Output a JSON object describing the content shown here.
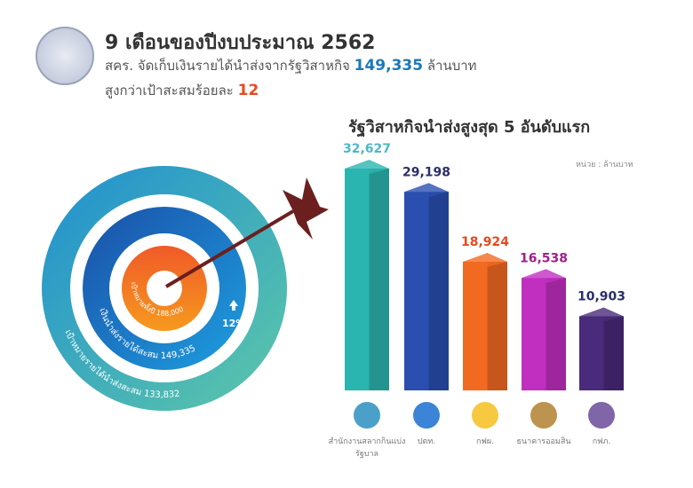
{
  "header": {
    "title": "9 เดือนของปีงบประมาณ 2562",
    "line1_prefix": "สคร. จัดเก็บเงินรายได้นำส่งจากรัฐวิสาหกิจ",
    "line1_value": "149,335",
    "line1_suffix": "ล้านบาท",
    "line2_prefix": "สูงกว่าเป้าสะสมร้อยละ",
    "line2_value": "12"
  },
  "target": {
    "inner_label": "เป้าหมายทั้งปี 188,000",
    "middle_label": "เงินนำส่งรายได้สะสม 149,335",
    "outer_label": "เป้าหมายรายได้นำส่งสะสม 133,832",
    "increase": "12%"
  },
  "chart_data": {
    "type": "bar",
    "title": "รัฐวิสาหกิจนำส่งสูงสุด 5 อันดับแรก",
    "unit": "หน่วย : ล้านบาท",
    "categories": [
      "สำนักงานสลากกินแบ่งรัฐบาล",
      "ปตท.",
      "กฟผ.",
      "ธนาคารออมสิน",
      "กฟภ."
    ],
    "value_labels": [
      "32,627",
      "29,198",
      "18,924",
      "16,538",
      "10,903"
    ],
    "values": [
      32627,
      29198,
      18924,
      16538,
      10903
    ],
    "colors": [
      "#2bb5b0",
      "#2a4fb0",
      "#f26a22",
      "#c02fc0",
      "#4a2a7a"
    ],
    "label_colors": [
      "#4cb8c8",
      "#2a2f6a",
      "#e8491d",
      "#a0208a",
      "#2a2f6a"
    ]
  }
}
